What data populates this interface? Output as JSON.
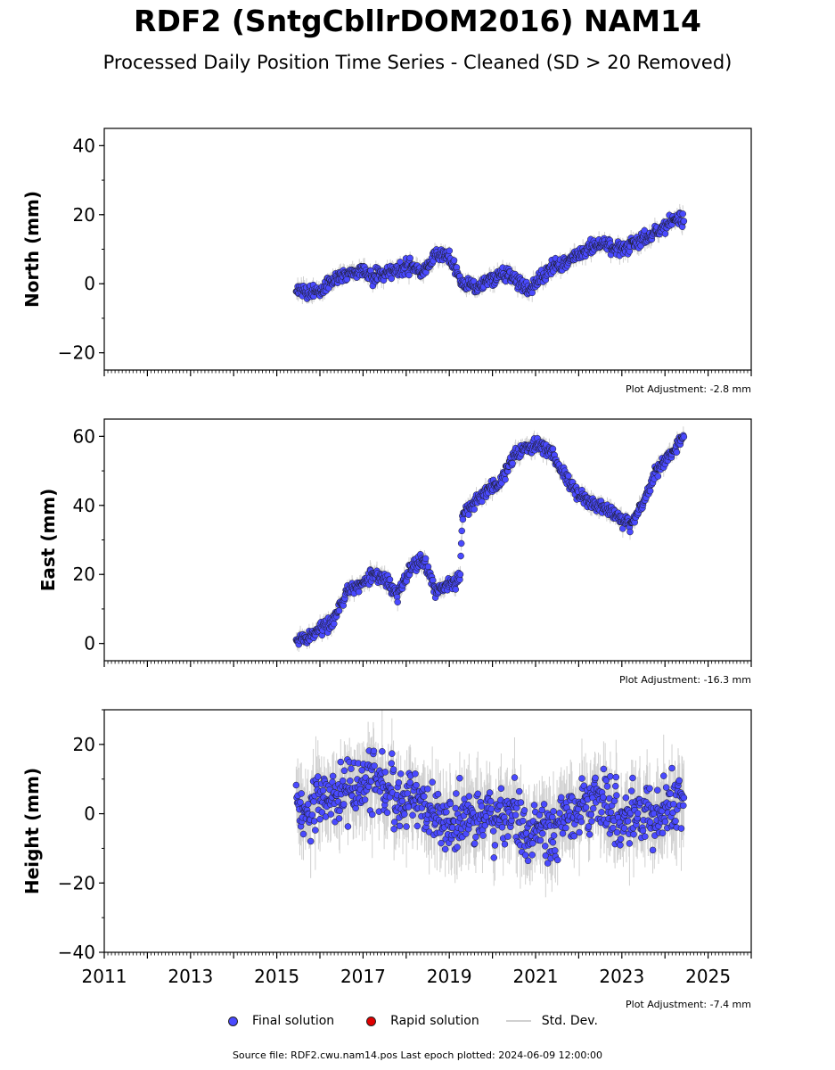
{
  "title": "RDF2 (SntgCbllrDOM2016) NAM14",
  "subtitle": "Processed Daily Position Time Series - Cleaned (SD > 20 Removed)",
  "legend": {
    "final": {
      "label": "Final solution",
      "color": "#4a4aff"
    },
    "rapid": {
      "label": "Rapid solution",
      "color": "#e00000"
    },
    "std": {
      "label": "Std. Dev.",
      "color": "#d0d0d0"
    }
  },
  "footer": "Source file: RDF2.cwu.nam14.pos  Last epoch plotted: 2024-06-09 12:00:00",
  "chart_data": [
    {
      "type": "scatter",
      "ylabel": "North (mm)",
      "xlim": [
        2011,
        2026
      ],
      "ylim": [
        -25,
        45
      ],
      "yticks": [
        -20,
        0,
        20,
        40
      ],
      "xtick_labels_shown": false,
      "adjustment": "Plot Adjustment: -2.8 mm",
      "series": [
        {
          "name": "Final solution",
          "x": [
            2015.45,
            2015.75,
            2016.0,
            2016.3,
            2016.6,
            2016.9,
            2017.2,
            2017.5,
            2017.8,
            2018.1,
            2018.4,
            2018.7,
            2019.0,
            2019.3,
            2019.6,
            2019.9,
            2020.2,
            2020.5,
            2020.8,
            2021.1,
            2021.4,
            2021.7,
            2022.0,
            2022.3,
            2022.6,
            2022.9,
            2023.2,
            2023.5,
            2023.8,
            2024.1,
            2024.44
          ],
          "y": [
            -1,
            -3,
            -2,
            1,
            2,
            4,
            2,
            3,
            4,
            5,
            3,
            9,
            8,
            0,
            -1,
            1,
            3,
            2,
            -2,
            1,
            5,
            6,
            9,
            11,
            12,
            10,
            11,
            13,
            15,
            18,
            19
          ]
        }
      ]
    },
    {
      "type": "scatter",
      "ylabel": "East (mm)",
      "xlim": [
        2011,
        2026
      ],
      "ylim": [
        -5,
        65
      ],
      "yticks": [
        0,
        20,
        40,
        60
      ],
      "xtick_labels_shown": false,
      "adjustment": "Plot Adjustment: -16.3 mm",
      "series": [
        {
          "name": "Final solution",
          "x": [
            2015.45,
            2015.75,
            2016.0,
            2016.3,
            2016.6,
            2016.9,
            2017.2,
            2017.5,
            2017.8,
            2018.1,
            2018.4,
            2018.7,
            2019.0,
            2019.25,
            2019.3,
            2019.6,
            2019.9,
            2020.2,
            2020.5,
            2020.8,
            2021.1,
            2021.4,
            2021.7,
            2022.0,
            2022.3,
            2022.6,
            2022.9,
            2023.2,
            2023.5,
            2023.8,
            2024.1,
            2024.44
          ],
          "y": [
            1,
            2,
            4,
            6,
            15,
            17,
            20,
            19,
            14,
            22,
            24,
            15,
            17,
            19,
            37,
            41,
            45,
            47,
            54,
            57,
            58,
            55,
            48,
            43,
            41,
            39,
            37,
            34,
            41,
            50,
            54,
            60
          ]
        }
      ]
    },
    {
      "type": "scatter",
      "ylabel": "Height (mm)",
      "xlim": [
        2011,
        2026
      ],
      "ylim": [
        -40,
        30
      ],
      "yticks": [
        -40,
        -20,
        0,
        20
      ],
      "xticks": [
        2011,
        2013,
        2015,
        2017,
        2019,
        2021,
        2023,
        2025
      ],
      "xtick_labels_shown": true,
      "adjustment": "Plot Adjustment: -7.4 mm",
      "series": [
        {
          "name": "Final solution",
          "x": [
            2015.45,
            2015.75,
            2016.0,
            2016.3,
            2016.6,
            2016.9,
            2017.2,
            2017.5,
            2017.8,
            2018.1,
            2018.4,
            2018.7,
            2019.0,
            2019.3,
            2019.6,
            2019.9,
            2020.2,
            2020.5,
            2020.8,
            2021.1,
            2021.4,
            2021.7,
            2022.0,
            2022.3,
            2022.6,
            2022.9,
            2023.2,
            2023.5,
            2023.8,
            2024.1,
            2024.44
          ],
          "y": [
            2,
            0,
            3,
            5,
            6,
            8,
            10,
            7,
            5,
            4,
            3,
            -2,
            -4,
            1,
            -2,
            0,
            -3,
            1,
            -5,
            -4,
            -6,
            -2,
            2,
            3,
            5,
            0,
            -2,
            2,
            -1,
            3,
            2
          ]
        }
      ]
    }
  ]
}
